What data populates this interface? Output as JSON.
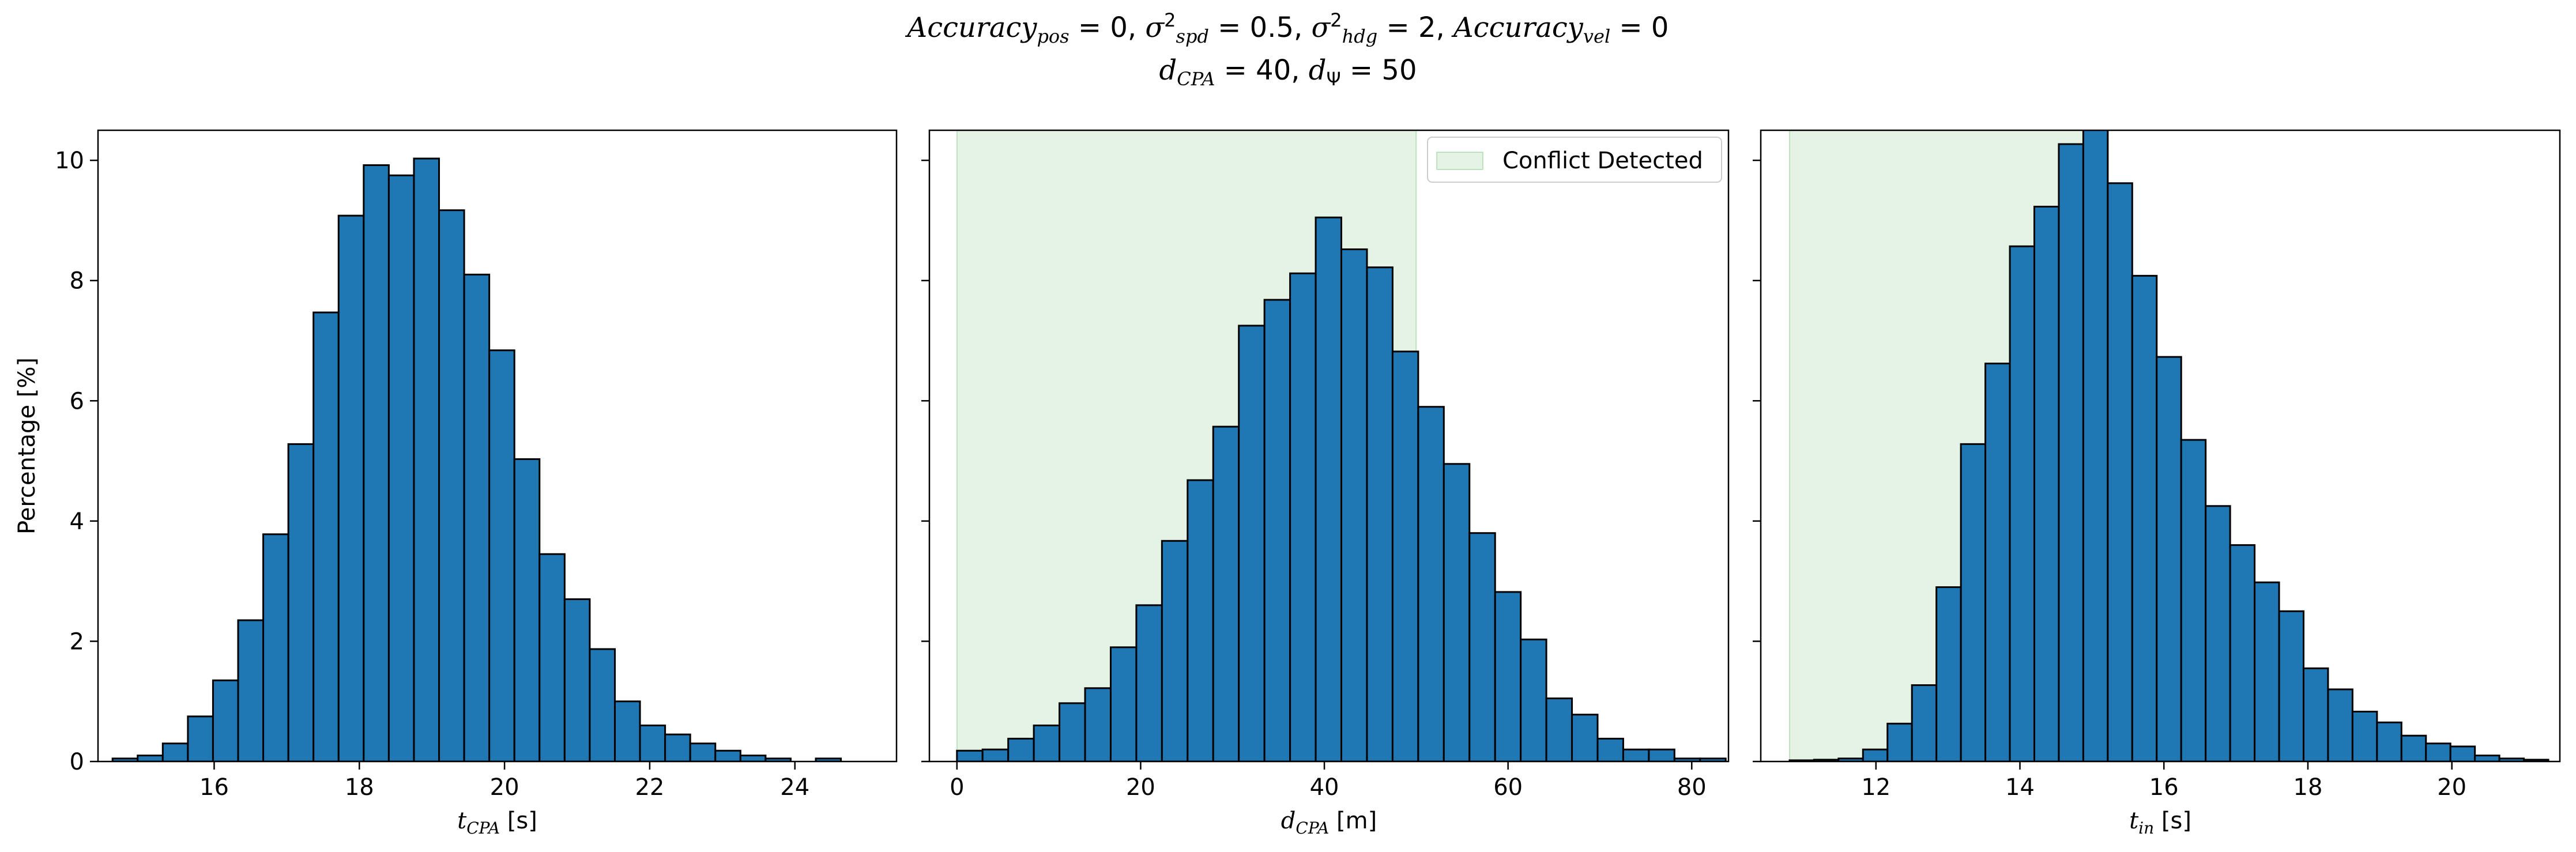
{
  "title": {
    "accuracy_pos": "0",
    "sigma2_spd": "0.5",
    "sigma2_hdg": "2",
    "accuracy_vel": "0",
    "d_cpa": "40",
    "d_psi": "50"
  },
  "colors": {
    "bar": "#1f77b4",
    "edge": "#000000",
    "conflict": "#2ca02c"
  },
  "chart_data": [
    {
      "type": "bar",
      "xlabel_sym": "t",
      "xlabel_sub": "CPA",
      "xlabel_unit": "[s]",
      "ylabel": "Percentage [%]",
      "xlim": [
        14.4,
        25.4
      ],
      "ylim": [
        0,
        10.5
      ],
      "xticks": [
        16,
        18,
        20,
        22,
        24
      ],
      "yticks": [
        0,
        2,
        4,
        6,
        8,
        10
      ],
      "bin_start": 14.6,
      "bin_width": 0.346,
      "values": [
        0.05,
        0.1,
        0.3,
        0.75,
        1.35,
        2.35,
        3.78,
        5.28,
        7.47,
        9.08,
        9.92,
        9.75,
        10.03,
        9.17,
        8.1,
        6.84,
        5.03,
        3.45,
        2.7,
        1.87,
        1.0,
        0.6,
        0.45,
        0.3,
        0.18,
        0.1,
        0.05,
        0.0,
        0.05
      ]
    },
    {
      "type": "bar",
      "xlabel_sym": "d",
      "xlabel_sub": "CPA",
      "xlabel_unit": "[m]",
      "xlim": [
        -3.0,
        84.0
      ],
      "ylim": [
        0,
        10.5
      ],
      "xticks": [
        0,
        20,
        40,
        60,
        80
      ],
      "yticks": [
        0,
        2,
        4,
        6,
        8,
        10
      ],
      "bin_start": 0.0,
      "bin_width": 2.79,
      "values": [
        0.18,
        0.2,
        0.38,
        0.6,
        0.97,
        1.22,
        1.9,
        2.6,
        3.67,
        4.68,
        5.57,
        7.25,
        7.68,
        8.12,
        9.05,
        8.52,
        8.22,
        6.82,
        5.9,
        4.95,
        3.8,
        2.82,
        2.03,
        1.05,
        0.78,
        0.38,
        0.2,
        0.2,
        0.05,
        0.05
      ],
      "span": [
        0,
        50
      ],
      "legend": "Conflict Detected"
    },
    {
      "type": "bar",
      "xlabel_sym": "t",
      "xlabel_sub": "in",
      "xlabel_unit": "[s]",
      "xlim": [
        10.4,
        21.5
      ],
      "ylim": [
        0,
        10.5
      ],
      "xticks": [
        12,
        14,
        16,
        18,
        20
      ],
      "yticks": [
        0,
        2,
        4,
        6,
        8,
        10
      ],
      "bin_start": 10.8,
      "bin_width": 0.34,
      "values": [
        0.02,
        0.03,
        0.05,
        0.2,
        0.63,
        1.27,
        2.9,
        5.28,
        6.62,
        8.57,
        9.23,
        10.27,
        10.6,
        9.62,
        8.08,
        6.73,
        5.35,
        4.25,
        3.6,
        2.98,
        2.5,
        1.55,
        1.2,
        0.83,
        0.65,
        0.43,
        0.3,
        0.25,
        0.1,
        0.05,
        0.03
      ]
    }
  ]
}
